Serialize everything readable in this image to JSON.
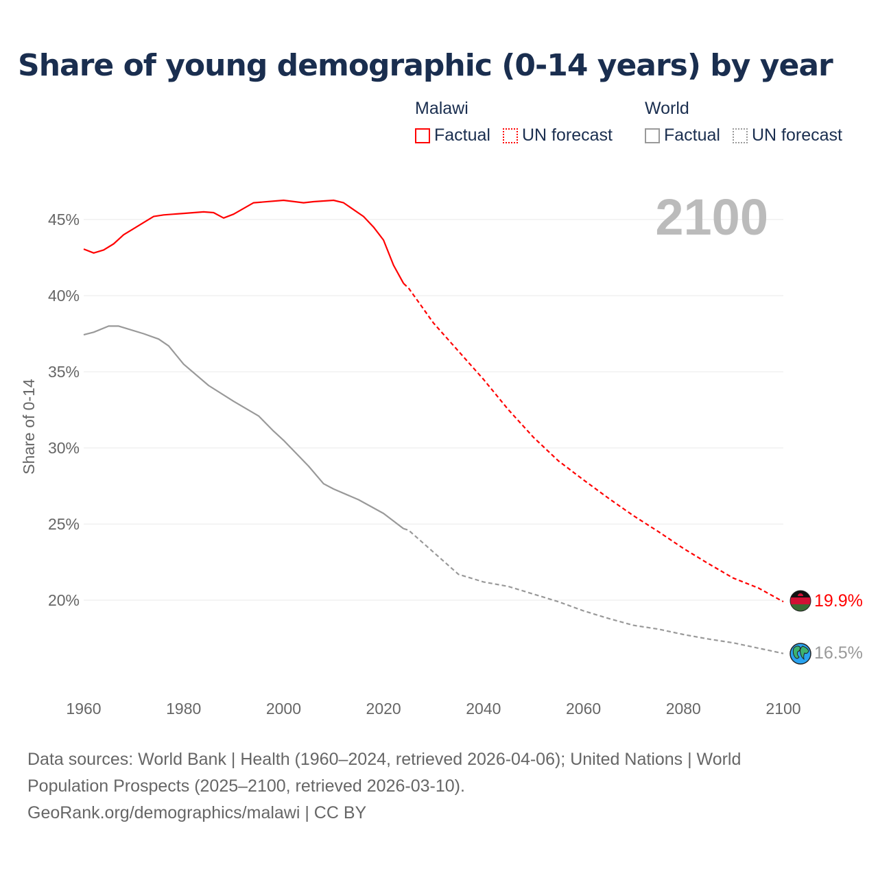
{
  "title": "Share of young demographic (0-14 years) by year",
  "legend": {
    "groups": [
      {
        "name": "Malawi",
        "factual": "Factual",
        "forecast": "UN forecast",
        "color": "#ff0000"
      },
      {
        "name": "World",
        "factual": "Factual",
        "forecast": "UN forecast",
        "color": "#999999"
      }
    ]
  },
  "year_display": "2100",
  "end_labels": {
    "malawi": "19.9%",
    "world": "16.5%"
  },
  "footer": {
    "line1": "Data sources: World Bank | Health (1960–2024, retrieved 2026-04-06); United Nations | World Population Prospects (2025–2100, retrieved 2026-03-10).",
    "line2": "GeoRank.org/demographics/malawi | CC BY"
  },
  "chart_data": {
    "type": "line",
    "title": "Share of young demographic (0-14 years) by year",
    "xlabel": "",
    "ylabel": "Share of 0-14",
    "xlim": [
      1960,
      2100
    ],
    "ylim": [
      17.5,
      47
    ],
    "xticks": [
      1960,
      1980,
      2000,
      2020,
      2040,
      2060,
      2080,
      2100
    ],
    "yticks": [
      20,
      25,
      30,
      35,
      40,
      45
    ],
    "ytick_labels": [
      "20%",
      "25%",
      "30%",
      "35%",
      "40%",
      "45%"
    ],
    "grid": true,
    "legend_position": "top-right",
    "series": [
      {
        "name": "Malawi Factual",
        "color": "#ff0000",
        "dashed": false,
        "x": [
          1960,
          1962,
          1964,
          1966,
          1968,
          1970,
          1972,
          1974,
          1976,
          1980,
          1984,
          1986,
          1988,
          1990,
          1994,
          2000,
          2004,
          2006,
          2010,
          2012,
          2016,
          2018,
          2020,
          2022,
          2024
        ],
        "y": [
          43.06,
          42.8,
          43.0,
          43.4,
          44.0,
          44.4,
          44.8,
          45.2,
          45.3,
          45.4,
          45.5,
          45.45,
          45.1,
          45.35,
          46.1,
          46.26,
          46.1,
          46.17,
          46.26,
          46.1,
          45.2,
          44.5,
          43.65,
          42.0,
          40.8
        ]
      },
      {
        "name": "Malawi UN forecast",
        "color": "#ff0000",
        "dashed": true,
        "x": [
          2024,
          2025,
          2030,
          2035,
          2040,
          2045,
          2050,
          2055,
          2060,
          2065,
          2070,
          2075,
          2080,
          2085,
          2090,
          2095,
          2100
        ],
        "y": [
          40.8,
          40.5,
          38.2,
          36.35,
          34.5,
          32.5,
          30.7,
          29.15,
          27.9,
          26.7,
          25.55,
          24.5,
          23.4,
          22.4,
          21.45,
          20.8,
          19.9
        ]
      },
      {
        "name": "World Factual",
        "color": "#999999",
        "dashed": false,
        "x": [
          1960,
          1962,
          1965,
          1967,
          1972,
          1975,
          1977,
          1980,
          1985,
          1990,
          1995,
          1998,
          2000,
          2005,
          2008,
          2010,
          2015,
          2020,
          2024
        ],
        "y": [
          37.43,
          37.6,
          38.0,
          38.0,
          37.5,
          37.15,
          36.7,
          35.5,
          34.1,
          33.06,
          32.1,
          31.1,
          30.5,
          28.8,
          27.65,
          27.3,
          26.6,
          25.7,
          24.7
        ]
      },
      {
        "name": "World UN forecast",
        "color": "#999999",
        "dashed": true,
        "x": [
          2024,
          2025,
          2030,
          2035,
          2040,
          2045,
          2050,
          2055,
          2060,
          2065,
          2070,
          2075,
          2080,
          2085,
          2090,
          2095,
          2100
        ],
        "y": [
          24.7,
          24.6,
          23.15,
          21.7,
          21.2,
          20.9,
          20.4,
          19.9,
          19.3,
          18.8,
          18.35,
          18.1,
          17.75,
          17.45,
          17.2,
          16.85,
          16.5
        ]
      }
    ]
  }
}
